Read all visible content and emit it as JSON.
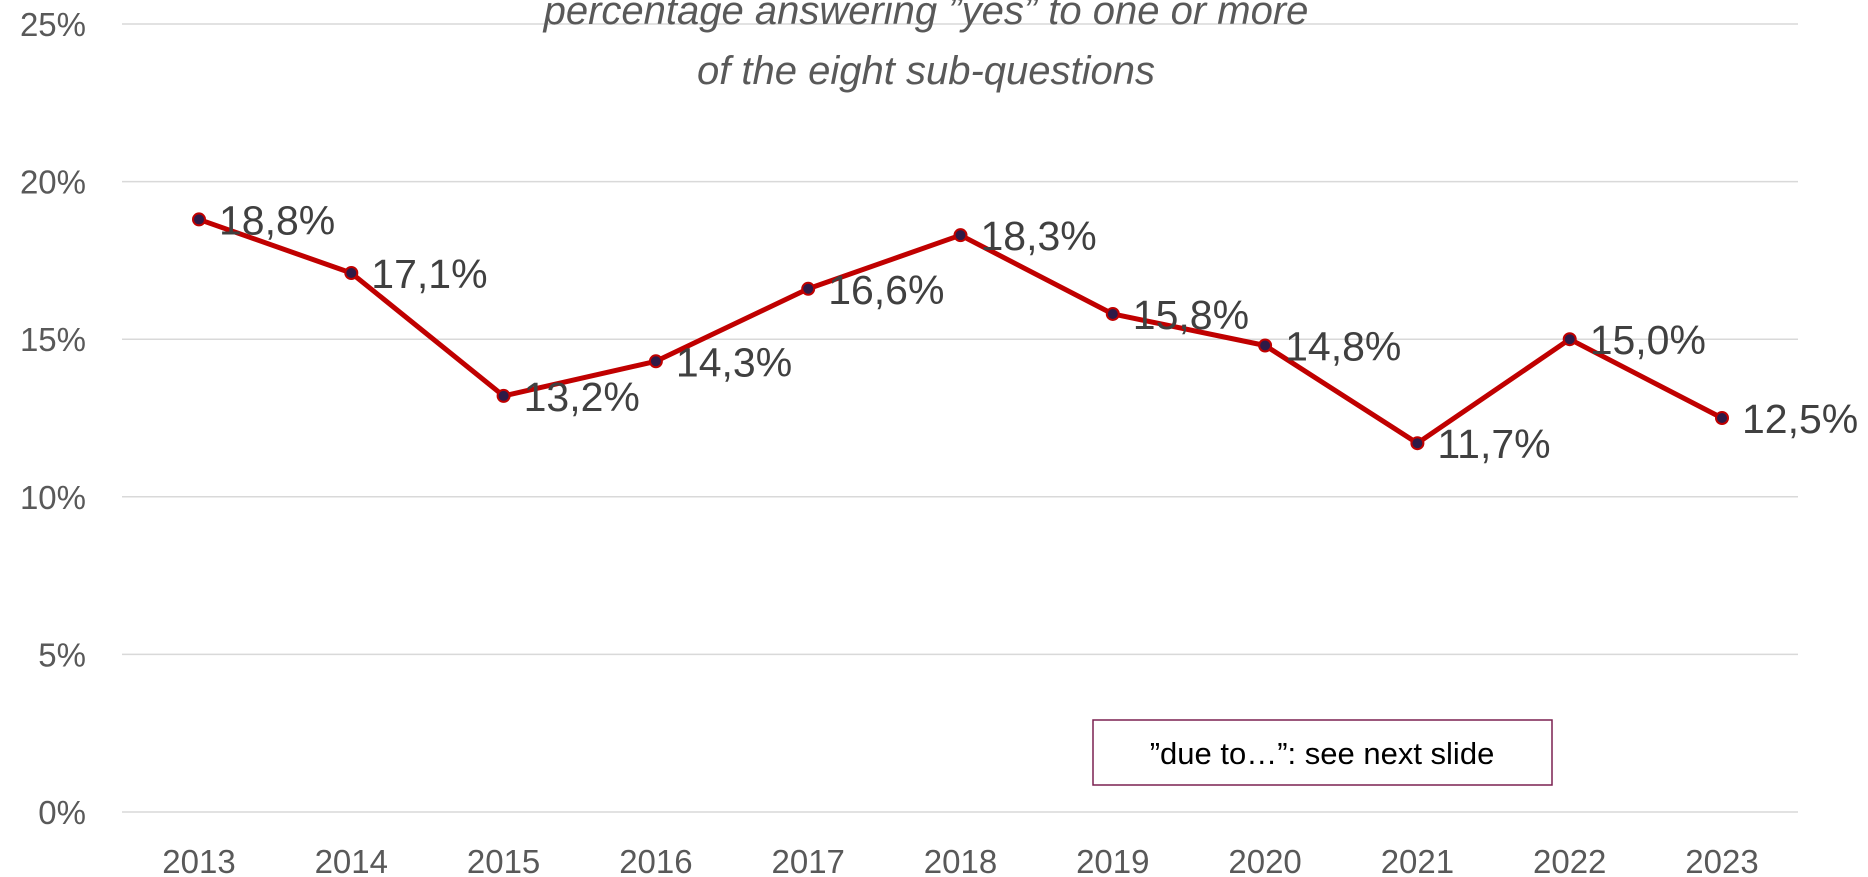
{
  "chart_data": {
    "type": "line",
    "title_lines": [
      "percentage answering ”yes” to one or more",
      "of the eight sub-questions"
    ],
    "xlabel": "",
    "ylabel": "",
    "categories": [
      "2013",
      "2014",
      "2015",
      "2016",
      "2017",
      "2018",
      "2019",
      "2020",
      "2021",
      "2022",
      "2023"
    ],
    "values": [
      18.8,
      17.1,
      13.2,
      14.3,
      16.6,
      18.3,
      15.8,
      14.8,
      11.7,
      15.0,
      12.5
    ],
    "data_labels": [
      "18,8%",
      "17,1%",
      "13,2%",
      "14,3%",
      "16,6%",
      "18,3%",
      "15,8%",
      "14,8%",
      "11,7%",
      "15,0%",
      "12,5%"
    ],
    "ylim": [
      0,
      25
    ],
    "yticks": [
      0,
      5,
      10,
      15,
      20,
      25
    ],
    "ytick_labels": [
      "0%",
      "5%",
      "10%",
      "15%",
      "20%",
      "25%"
    ],
    "grid": true,
    "legend": "none",
    "colors": {
      "line": "#c00000",
      "marker": "#2e1a47",
      "grid": "#d9d9d9",
      "note_border": "#7b2150"
    }
  },
  "note": {
    "text": "”due to…”: see next slide"
  }
}
